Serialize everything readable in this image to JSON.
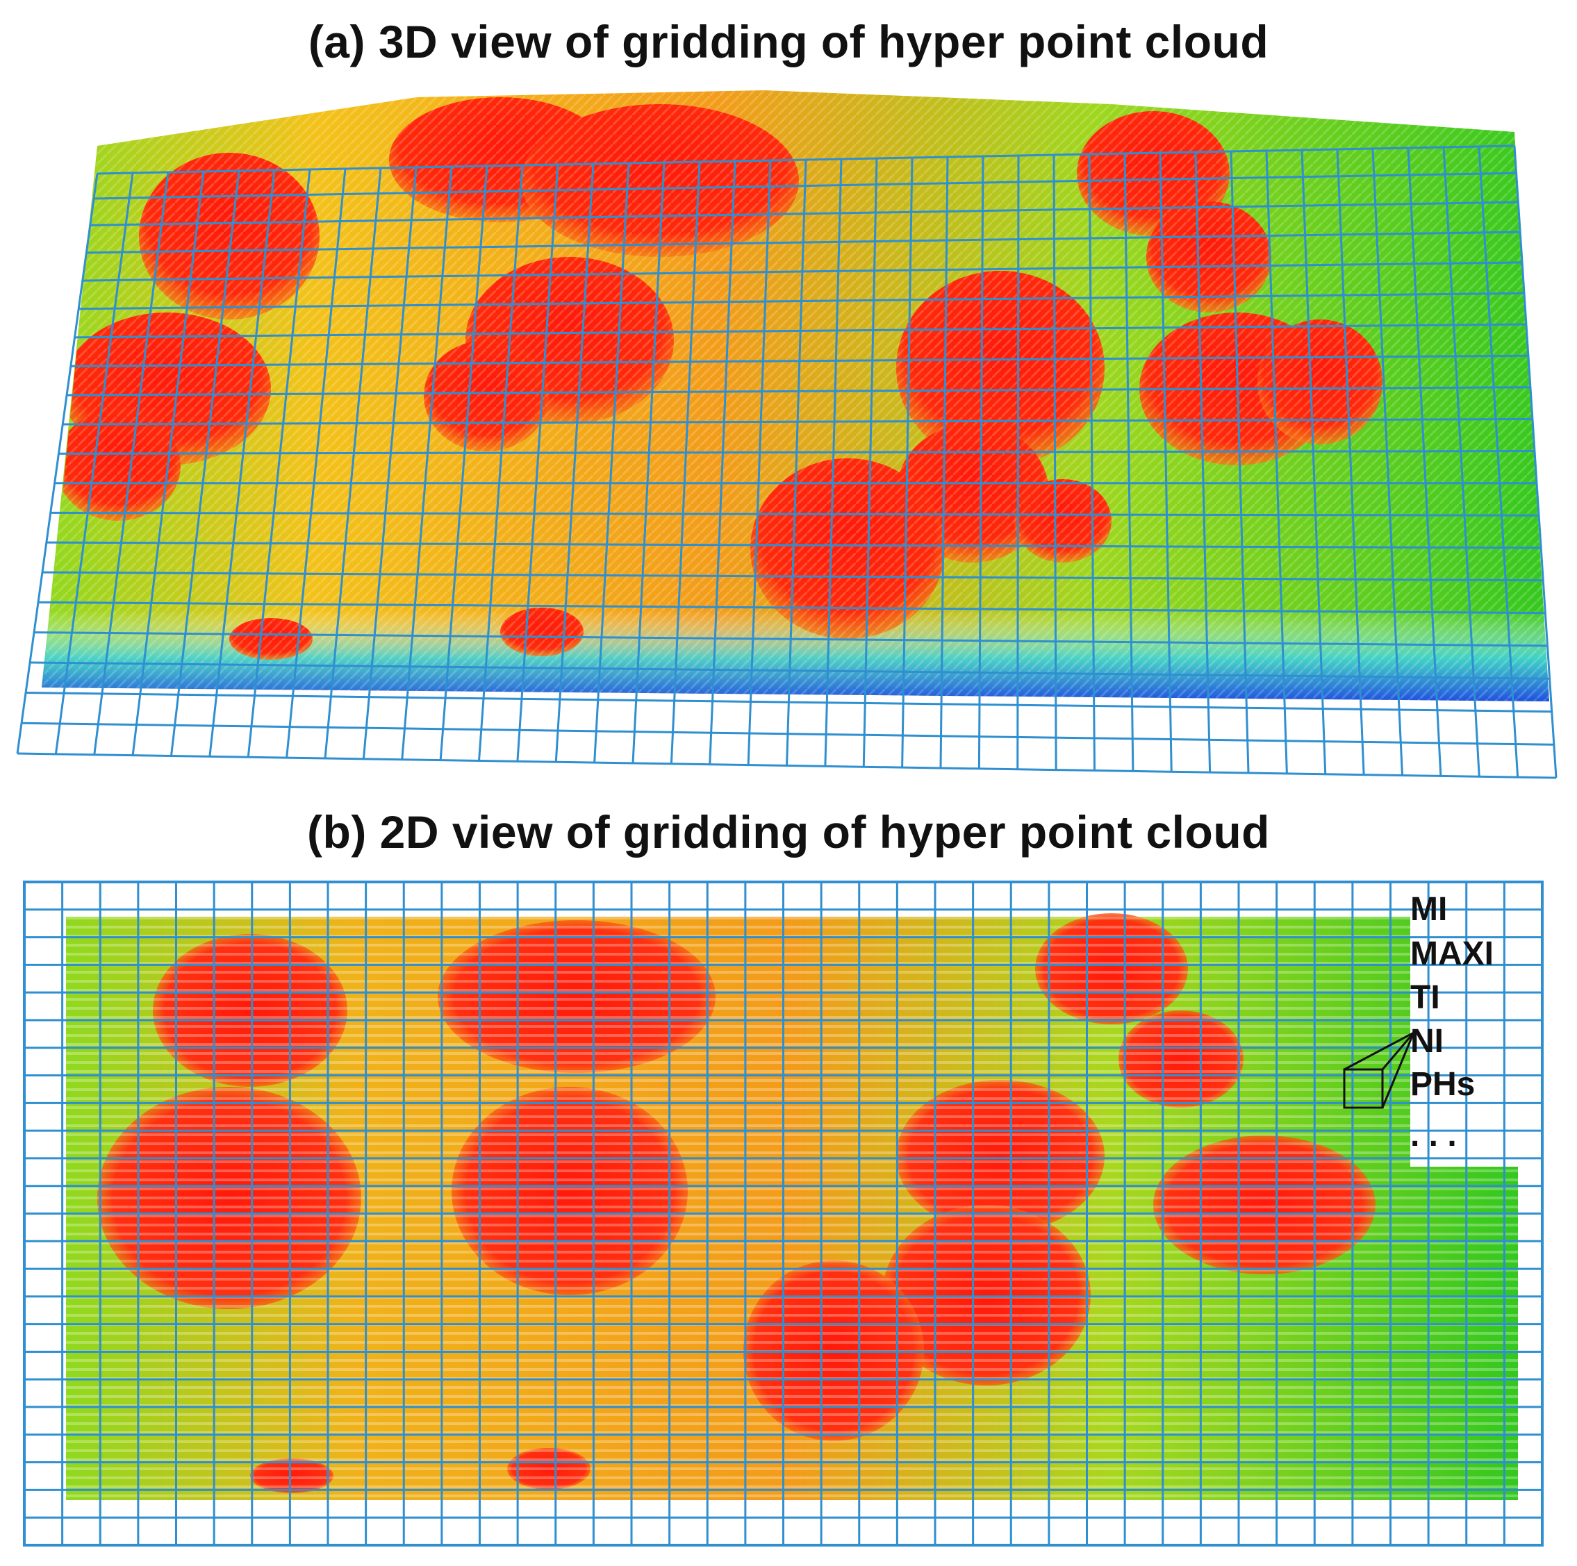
{
  "figure": {
    "panel_a": {
      "title": "(a) 3D view of gridding of hyper point cloud"
    },
    "panel_b": {
      "title": "(b) 2D view of gridding of hyper point cloud",
      "feature_labels": [
        "MI",
        "MAXI",
        "TI",
        "NI",
        "PHs",
        ". . ."
      ]
    }
  },
  "colors": {
    "grid_line": "#2f8fd0",
    "high": "#ff1a0a",
    "mid_high": "#f47a12",
    "mid": "#f3a21a",
    "mid_low": "#e5d21c",
    "low": "#7fd11e",
    "ground": "#34c81f",
    "base": "#1f6fe0"
  }
}
